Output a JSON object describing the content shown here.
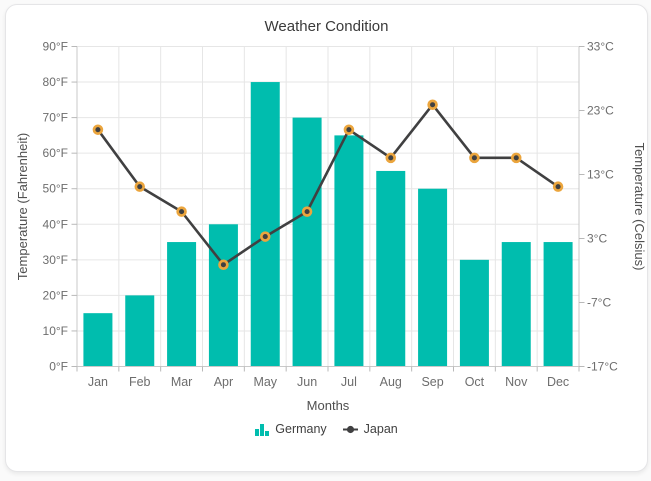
{
  "chart_data": {
    "type": "combo",
    "title": "Weather Condition",
    "categories": [
      "Jan",
      "Feb",
      "Mar",
      "Apr",
      "May",
      "Jun",
      "Jul",
      "Aug",
      "Sep",
      "Oct",
      "Nov",
      "Dec"
    ],
    "x_axis": {
      "title": "Months"
    },
    "y_axis_left": {
      "title": "Temperature (Fahrenheit)",
      "min": 0,
      "max": 90,
      "interval": 10,
      "label_suffix": "°F"
    },
    "y_axis_right": {
      "title": "Temperature (Celsius)",
      "min": -17,
      "max": 33,
      "interval": 10,
      "label_suffix": "°C"
    },
    "series": [
      {
        "name": "Germany",
        "type": "bar",
        "axis": "left",
        "color": "#00bdae",
        "values": [
          15,
          20,
          35,
          40,
          80,
          70,
          65,
          55,
          50,
          30,
          35,
          35
        ]
      },
      {
        "name": "Japan",
        "type": "line",
        "axis": "right",
        "color": "#404041",
        "marker_fill": "#404041",
        "marker_border": "#eba53d",
        "values": [
          20,
          11.1,
          7.2,
          -1.1,
          3.3,
          7.2,
          20,
          15.6,
          23.9,
          15.6,
          15.6,
          11.1
        ]
      }
    ],
    "legend": {
      "position": "bottom",
      "items": [
        "Germany",
        "Japan"
      ]
    },
    "grid": true,
    "styles": {
      "gridline_color": "#e6e6e6",
      "axis_line_color": "#c9c9c9",
      "tick_color": "#b9b9b9",
      "tick_label_color": "#6d6d6d",
      "title_color": "#3a3a3a"
    }
  }
}
